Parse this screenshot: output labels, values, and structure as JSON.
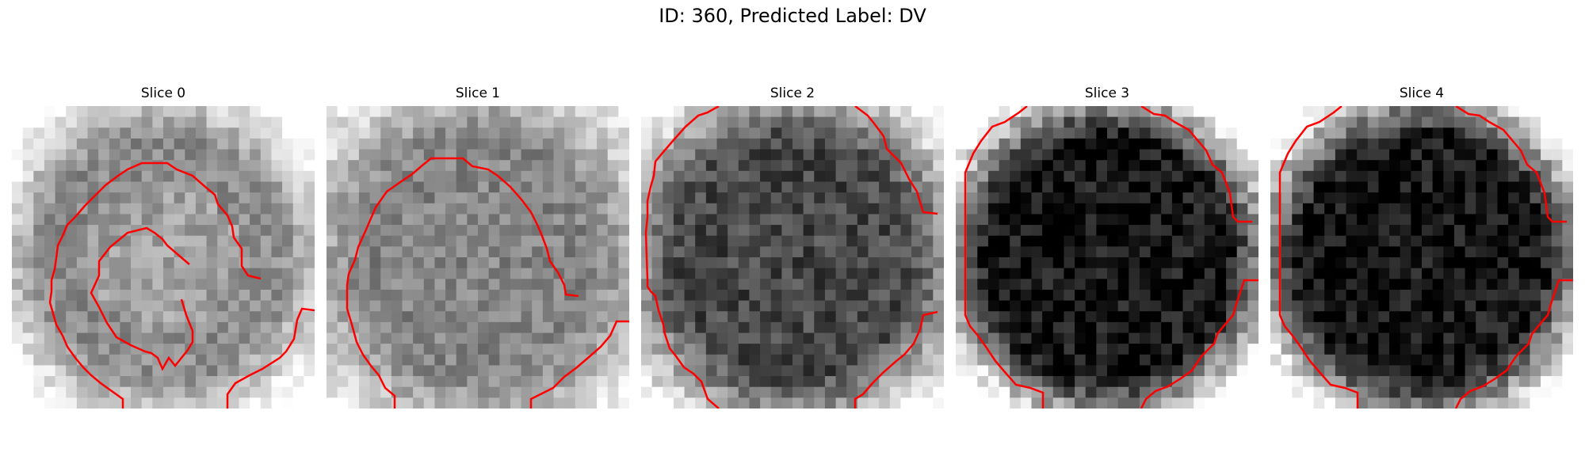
{
  "figure": {
    "title": "ID: 360, Predicted Label: DV"
  },
  "panels": [
    {
      "label": "Slice 0",
      "brightness": 0.55,
      "ring_contrast": 0.35
    },
    {
      "label": "Slice 1",
      "brightness": 0.52,
      "ring_contrast": 0.25
    },
    {
      "label": "Slice 2",
      "brightness": 0.28,
      "ring_contrast": 0.45
    },
    {
      "label": "Slice 3",
      "brightness": 0.07,
      "ring_contrast": 0.75
    },
    {
      "label": "Slice 4",
      "brightness": 0.07,
      "ring_contrast": 0.75
    }
  ],
  "colors": {
    "contour": "#ff0000",
    "background": "#ffffff"
  }
}
